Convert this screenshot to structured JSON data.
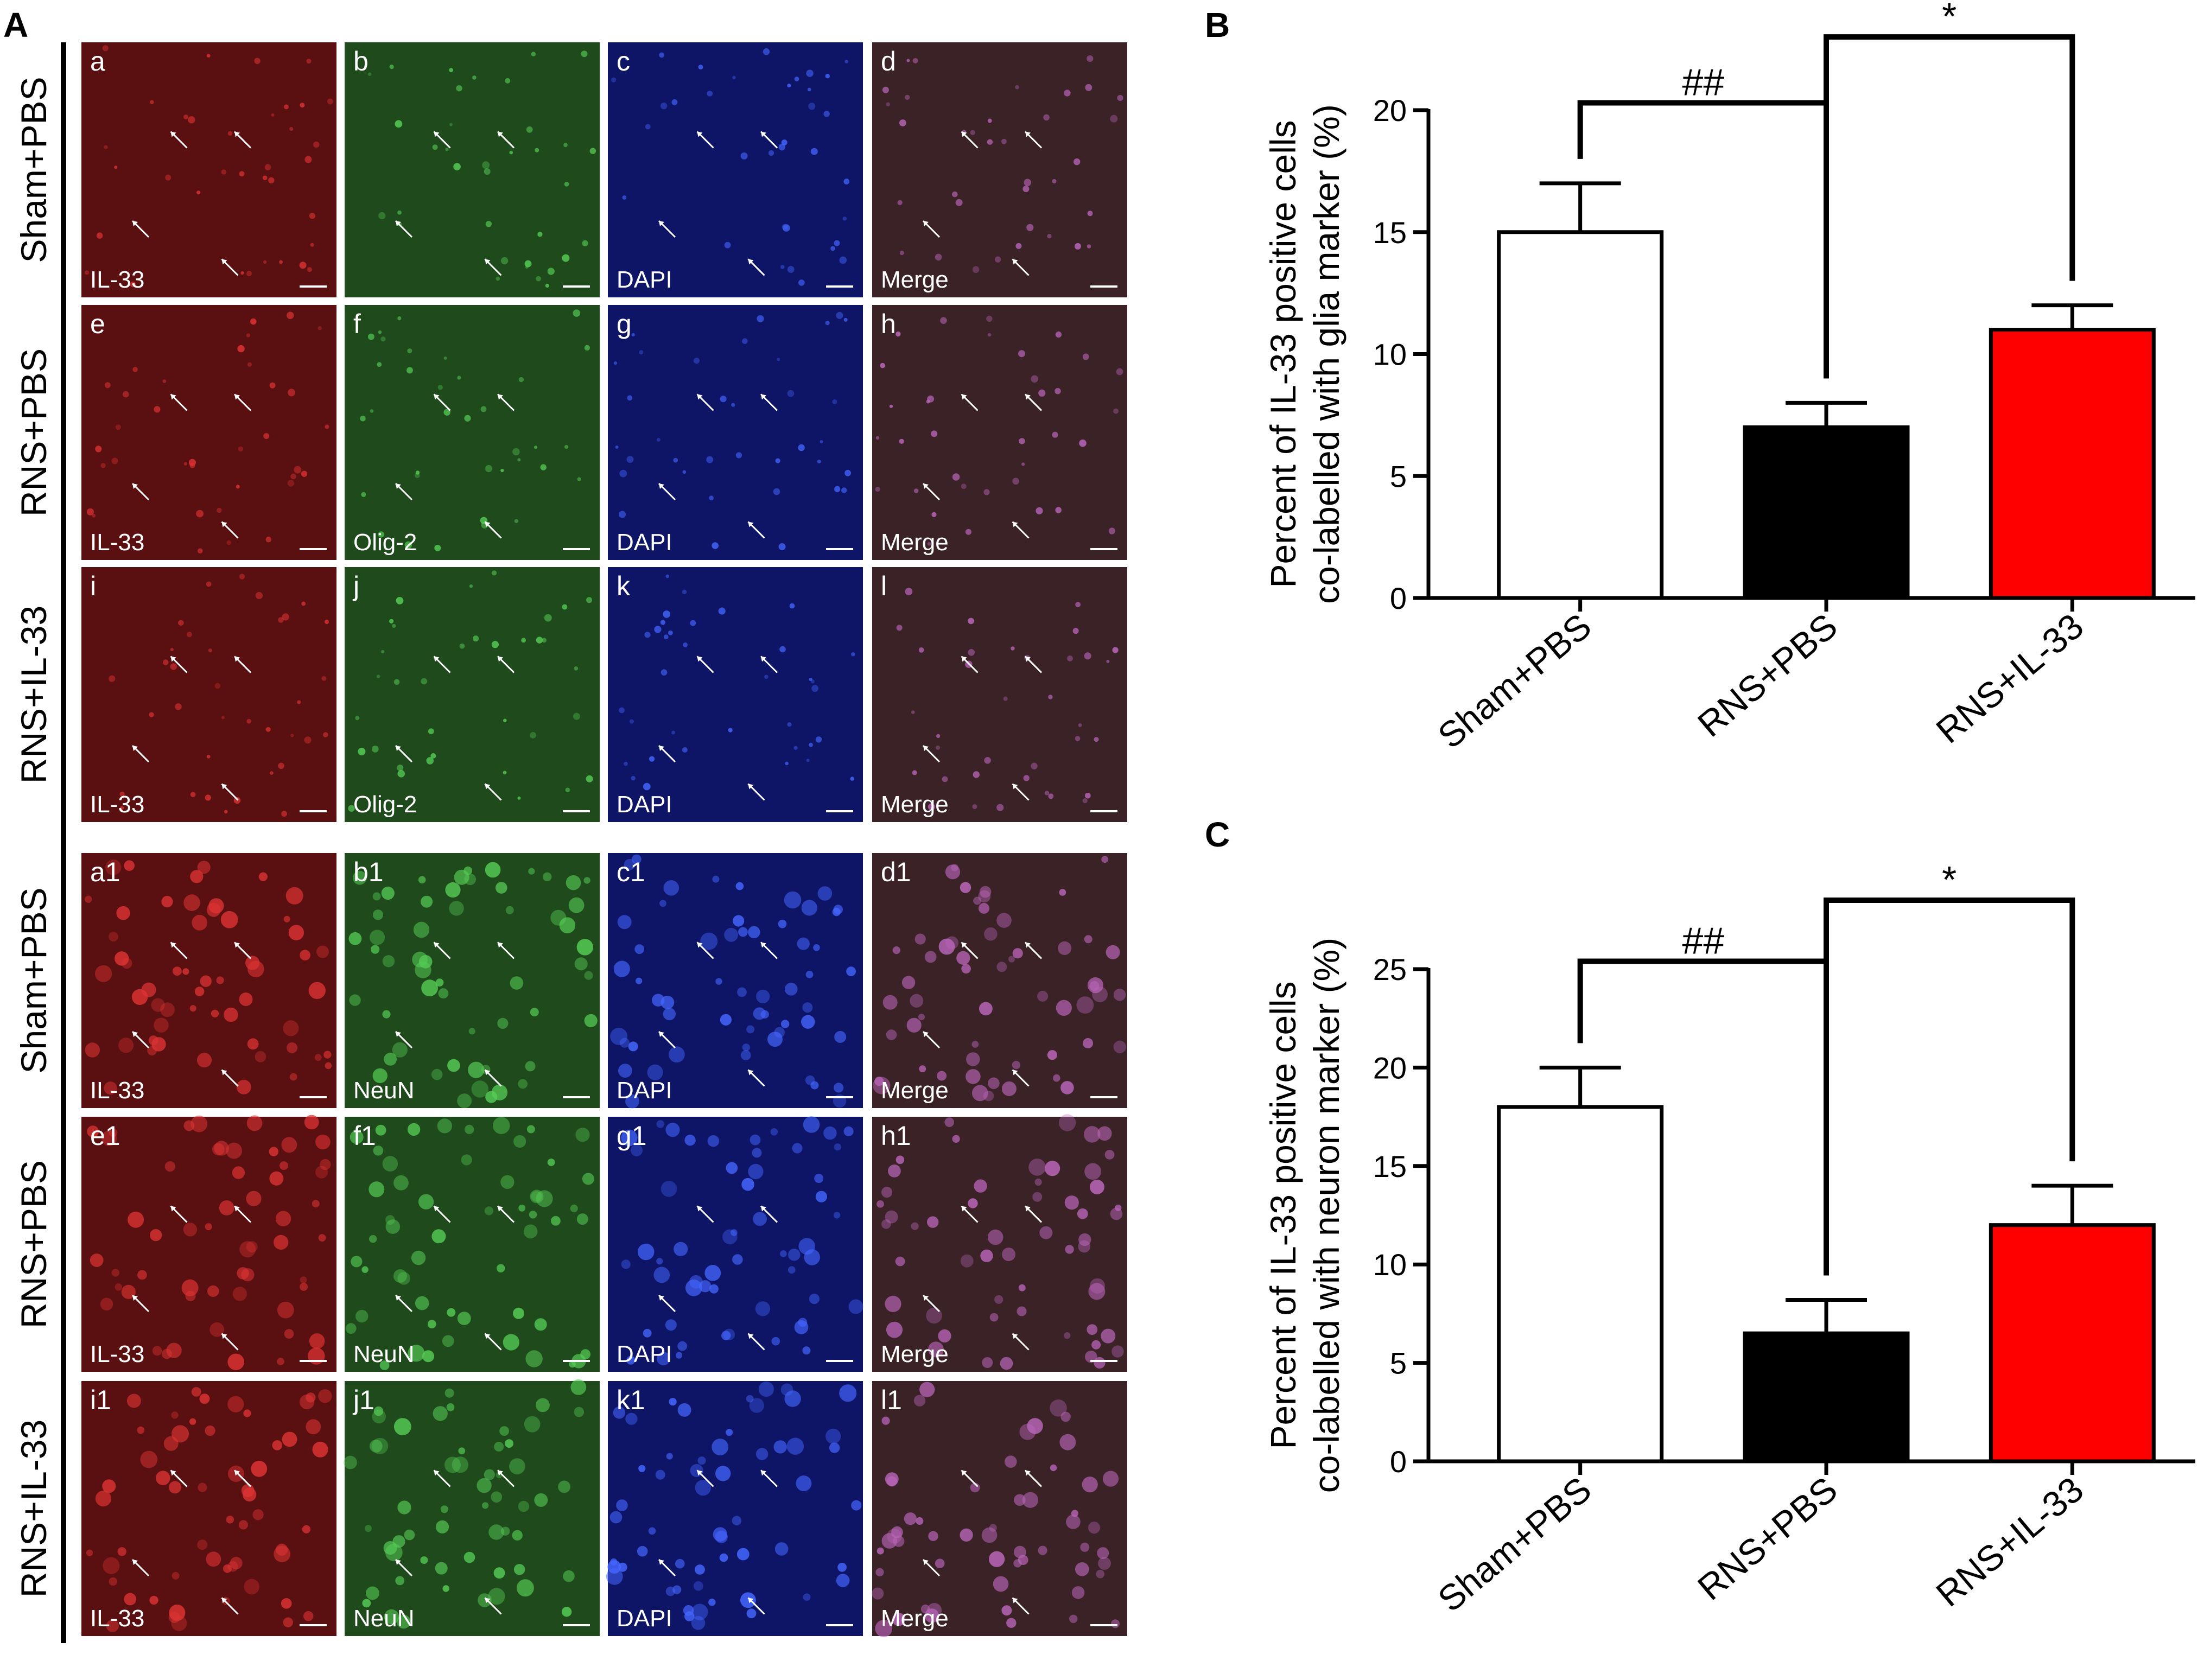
{
  "panel_labels": {
    "a": "A",
    "b": "B",
    "c": "C"
  },
  "micrographs": {
    "rows": [
      {
        "label": "Sham+PBS",
        "group": "glia",
        "tiles": [
          {
            "letter": "a",
            "caption": "IL-33",
            "channel": "red"
          },
          {
            "letter": "b",
            "caption": "",
            "channel": "green"
          },
          {
            "letter": "c",
            "caption": "DAPI",
            "channel": "blue"
          },
          {
            "letter": "d",
            "caption": "Merge",
            "channel": "merge"
          }
        ]
      },
      {
        "label": "RNS+PBS",
        "group": "glia",
        "tiles": [
          {
            "letter": "e",
            "caption": "IL-33",
            "channel": "red"
          },
          {
            "letter": "f",
            "caption": "Olig-2",
            "channel": "green"
          },
          {
            "letter": "g",
            "caption": "DAPI",
            "channel": "blue"
          },
          {
            "letter": "h",
            "caption": "Merge",
            "channel": "merge"
          }
        ]
      },
      {
        "label": "RNS+IL-33",
        "group": "glia",
        "tiles": [
          {
            "letter": "i",
            "caption": "IL-33",
            "channel": "red"
          },
          {
            "letter": "j",
            "caption": "Olig-2",
            "channel": "green"
          },
          {
            "letter": "k",
            "caption": "DAPI",
            "channel": "blue"
          },
          {
            "letter": "l",
            "caption": "Merge",
            "channel": "merge"
          }
        ]
      },
      {
        "label": "Sham+PBS",
        "group": "neuron",
        "tiles": [
          {
            "letter": "a1",
            "caption": "IL-33",
            "channel": "red"
          },
          {
            "letter": "b1",
            "caption": "NeuN",
            "channel": "green"
          },
          {
            "letter": "c1",
            "caption": "DAPI",
            "channel": "blue"
          },
          {
            "letter": "d1",
            "caption": "Merge",
            "channel": "merge"
          }
        ]
      },
      {
        "label": "RNS+PBS",
        "group": "neuron",
        "tiles": [
          {
            "letter": "e1",
            "caption": "IL-33",
            "channel": "red"
          },
          {
            "letter": "f1",
            "caption": "NeuN",
            "channel": "green"
          },
          {
            "letter": "g1",
            "caption": "DAPI",
            "channel": "blue"
          },
          {
            "letter": "h1",
            "caption": "Merge",
            "channel": "merge"
          }
        ]
      },
      {
        "label": "RNS+IL-33",
        "group": "neuron",
        "tiles": [
          {
            "letter": "i1",
            "caption": "IL-33",
            "channel": "red"
          },
          {
            "letter": "j1",
            "caption": "NeuN",
            "channel": "green"
          },
          {
            "letter": "k1",
            "caption": "DAPI",
            "channel": "blue"
          },
          {
            "letter": "l1",
            "caption": "Merge",
            "channel": "merge"
          }
        ]
      }
    ],
    "channel_colors": {
      "red": "#5a0f10",
      "green": "#1f4a1c",
      "blue": "#0e1466",
      "merge": "#3a2226"
    }
  },
  "chart_data": [
    {
      "panel": "B",
      "type": "bar",
      "categories": [
        "Sham+PBS",
        "RNS+PBS",
        "RNS+IL-33"
      ],
      "values": [
        15,
        7,
        11
      ],
      "errors": [
        2,
        1,
        1
      ],
      "colors": [
        "#ffffff",
        "#000000",
        "#ff0000"
      ],
      "ylabel_line1": "Percent of IL-33 positive cells",
      "ylabel_line2": "co-labelled with glia  marker (%)",
      "ylim": [
        0,
        20
      ],
      "yticks": [
        0,
        5,
        10,
        15,
        20
      ],
      "significance": [
        {
          "from": 0,
          "to": 1,
          "label": "##",
          "level": 20.3
        },
        {
          "from": 1,
          "to": 2,
          "label": "*",
          "level": 23
        }
      ]
    },
    {
      "panel": "C",
      "type": "bar",
      "categories": [
        "Sham+PBS",
        "RNS+PBS",
        "RNS+IL-33"
      ],
      "values": [
        18,
        6.5,
        12
      ],
      "errors": [
        2,
        1.7,
        2
      ],
      "colors": [
        "#ffffff",
        "#000000",
        "#ff0000"
      ],
      "ylabel_line1": "Percent of IL-33 positive cells",
      "ylabel_line2": "co-labelled with neuron marker (%)",
      "ylim": [
        0,
        25
      ],
      "yticks": [
        0,
        5,
        10,
        15,
        20,
        25
      ],
      "significance": [
        {
          "from": 0,
          "to": 1,
          "label": "##",
          "level": 25.4
        },
        {
          "from": 1,
          "to": 2,
          "label": "*",
          "level": 28.5
        }
      ]
    }
  ]
}
